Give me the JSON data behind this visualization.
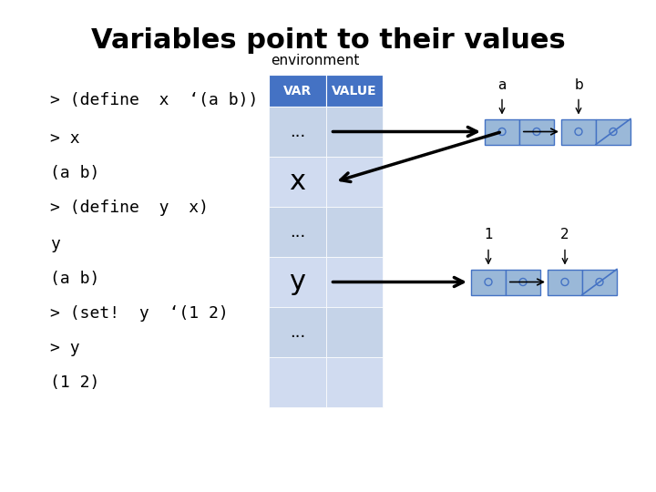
{
  "title": "Variables point to their values",
  "title_fontsize": 22,
  "title_fontweight": "bold",
  "bg_color": "#ffffff",
  "left_lines": [
    "> (define  x  ‘(a b))",
    "> x",
    "(a b)",
    "> (define  y  x)",
    "y",
    "(a b)",
    "> (set!  y  ‘(1 2)",
    "> y",
    "(1 2)"
  ],
  "env_label": "environment",
  "env_label_fontsize": 11,
  "header_color": "#4472C4",
  "row_colors": [
    "#C5D3E8",
    "#D0DBF0"
  ],
  "var_col_label": "VAR",
  "val_col_label": "VALUE",
  "row_labels": [
    "...",
    "x",
    "...",
    "y",
    "...",
    ""
  ],
  "pair_box_face": "#9AB8D8",
  "pair_box_edge": "#4472C4",
  "label_a": "a",
  "label_b": "b",
  "label_1": "1",
  "label_2": "2"
}
